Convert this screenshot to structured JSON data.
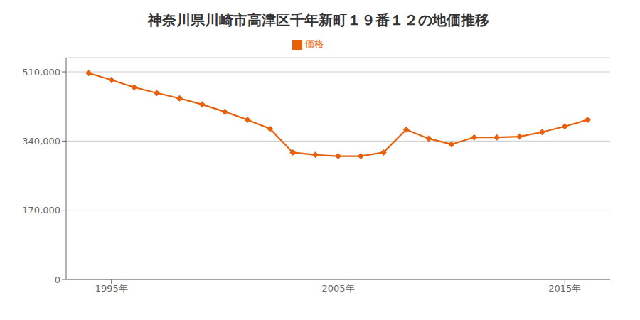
{
  "chart_data": {
    "type": "line",
    "title": "神奈川県川崎市高津区千年新町１９番１２の地価推移",
    "x": [
      1994,
      1995,
      1996,
      1997,
      1998,
      1999,
      2000,
      2001,
      2002,
      2003,
      2004,
      2005,
      2006,
      2007,
      2008,
      2009,
      2010,
      2011,
      2012,
      2013,
      2014,
      2015,
      2016
    ],
    "series": [
      {
        "name": "価格",
        "color": "#e8600a",
        "marker": "diamond",
        "values": [
          507000,
          490000,
          472000,
          458000,
          445000,
          430000,
          412000,
          392000,
          370000,
          312000,
          306000,
          303000,
          303000,
          312000,
          368000,
          346000,
          332000,
          349000,
          349000,
          351000,
          362000,
          376000,
          392000
        ]
      }
    ],
    "xlim": [
      1993,
      2017
    ],
    "xticks": [
      {
        "value": 1995,
        "label": "1995年"
      },
      {
        "value": 2005,
        "label": "2005年"
      },
      {
        "value": 2015,
        "label": "2015年"
      }
    ],
    "ylim": [
      0,
      545000
    ],
    "yticks": [
      0,
      {
        "value": 170000,
        "label": "170,000"
      },
      {
        "value": 340000,
        "label": "340,000"
      },
      {
        "value": 510000,
        "label": "510,000"
      }
    ],
    "grid": true,
    "legend": "top"
  }
}
